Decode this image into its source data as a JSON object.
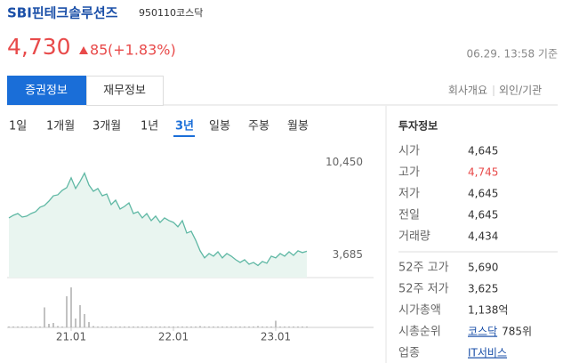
{
  "header": {
    "name": "SBI핀테크솔루션즈",
    "code": "950110",
    "market": "코스닥"
  },
  "price": {
    "current": "4,730",
    "change": "85",
    "change_rate": "(+1.83%)",
    "time": "06.29. 13:58 기준"
  },
  "tabs": [
    "증권정보",
    "재무정보"
  ],
  "links": [
    "회사개요",
    "외인/기관"
  ],
  "periods": [
    "1일",
    "1개월",
    "3개월",
    "1년",
    "3년",
    "일봉",
    "주봉",
    "월봉"
  ],
  "chart_data": [
    {
      "type": "area",
      "color": "#5fb8a4",
      "values": [
        7170,
        7360,
        7490,
        7230,
        7300,
        7490,
        7620,
        7950,
        8080,
        8400,
        8790,
        8860,
        9190,
        9380,
        10100,
        9320,
        9840,
        10450,
        9580,
        9120,
        9320,
        8790,
        8920,
        8140,
        8470,
        7820,
        8010,
        8270,
        7490,
        7620,
        7170,
        7490,
        6970,
        7300,
        6840,
        7170,
        6970,
        6840,
        6520,
        6970,
        6060,
        6190,
        5540,
        4760,
        4240,
        4560,
        4370,
        4690,
        4240,
        4560,
        4370,
        4110,
        3910,
        4110,
        3780,
        3910,
        3685,
        3980,
        3850,
        4370,
        4240,
        4560,
        4370,
        4690,
        4430,
        4760,
        4630,
        4730
      ],
      "ylim": [
        2800,
        12700
      ],
      "yticks": [
        {
          "value": 10450,
          "label": "10,450"
        },
        {
          "value": 3685,
          "label": "3,685"
        }
      ],
      "xticks": [
        {
          "value": 14,
          "label": "21.01"
        },
        {
          "value": 37,
          "label": "22.01"
        },
        {
          "value": 60,
          "label": "23.01"
        }
      ]
    },
    {
      "type": "bar",
      "color": "#999999",
      "values": [
        2,
        2,
        2,
        2,
        2,
        2,
        2,
        2,
        45,
        8,
        10,
        3,
        2,
        70,
        90,
        20,
        50,
        30,
        12,
        3,
        2,
        2,
        2,
        2,
        2,
        2,
        2,
        2,
        2,
        2,
        2,
        2,
        2,
        2,
        2,
        2,
        2,
        2,
        2,
        2,
        2,
        2,
        2,
        3,
        2,
        2,
        2,
        2,
        2,
        2,
        2,
        2,
        2,
        2,
        2,
        2,
        3,
        2,
        2,
        2,
        15,
        2,
        2,
        2,
        2,
        2,
        2,
        2
      ],
      "ylim": [
        0,
        100
      ]
    }
  ],
  "info": {
    "title": "투자정보",
    "rows": [
      [
        "시가",
        "4,645"
      ],
      [
        "고가",
        "4,745"
      ],
      [
        "저가",
        "4,645"
      ],
      [
        "전일",
        "4,645"
      ],
      [
        "거래량",
        "4,434"
      ]
    ],
    "rows2": [
      [
        "52주 고가",
        "5,690"
      ],
      [
        "52주 저가",
        "3,625"
      ],
      [
        "시가총액",
        "1,138억"
      ],
      [
        "시총순위",
        "코스닥",
        "785위"
      ],
      [
        "업종",
        "IT서비스"
      ]
    ]
  }
}
